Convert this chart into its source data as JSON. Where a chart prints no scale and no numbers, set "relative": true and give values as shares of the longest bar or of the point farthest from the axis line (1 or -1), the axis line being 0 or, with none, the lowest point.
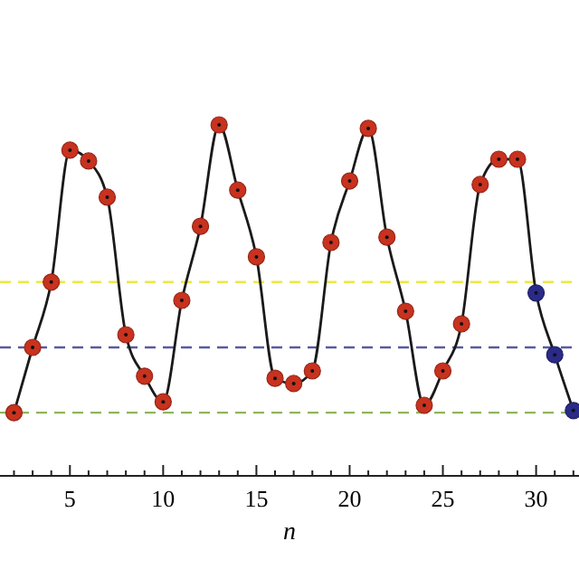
{
  "chart_data": {
    "type": "line",
    "relative": true,
    "xlabel": "n",
    "xlim": [
      1.25,
      32.3
    ],
    "xticks": [
      {
        "value": 2,
        "label": null
      },
      {
        "value": 3,
        "label": null
      },
      {
        "value": 4,
        "label": null
      },
      5,
      {
        "value": 6,
        "label": null
      },
      {
        "value": 7,
        "label": null
      },
      {
        "value": 8,
        "label": null
      },
      {
        "value": 9,
        "label": null
      },
      10,
      {
        "value": 11,
        "label": null
      },
      {
        "value": 12,
        "label": null
      },
      {
        "value": 13,
        "label": null
      },
      {
        "value": 14,
        "label": null
      },
      15,
      {
        "value": 16,
        "label": null
      },
      {
        "value": 17,
        "label": null
      },
      {
        "value": 18,
        "label": null
      },
      {
        "value": 19,
        "label": null
      },
      20,
      {
        "value": 21,
        "label": null
      },
      {
        "value": 22,
        "label": null
      },
      {
        "value": 23,
        "label": null
      },
      {
        "value": 24,
        "label": null
      },
      25,
      {
        "value": 26,
        "label": null
      },
      {
        "value": 27,
        "label": null
      },
      {
        "value": 28,
        "label": null
      },
      {
        "value": 29,
        "label": null
      },
      30,
      {
        "value": 31,
        "label": null
      },
      {
        "value": 32,
        "label": null
      }
    ],
    "series": [
      {
        "color": "#1a1a1a",
        "marker": "none",
        "x": [
          2,
          3,
          4,
          5,
          6,
          7,
          8,
          9,
          10,
          11,
          12,
          13,
          14,
          15,
          16,
          17,
          18,
          19,
          20,
          21,
          22,
          23,
          24,
          25,
          26,
          27,
          28,
          29,
          30,
          31,
          32
        ],
        "values": [
          0.18,
          0.366,
          0.552,
          0.928,
          0.897,
          0.794,
          0.402,
          0.284,
          0.211,
          0.5,
          0.711,
          1,
          0.814,
          0.624,
          0.278,
          0.263,
          0.299,
          0.665,
          0.84,
          0.99,
          0.68,
          0.469,
          0.201,
          0.299,
          0.433,
          0.83,
          0.902,
          0.902,
          0.521,
          0.345,
          0.186
        ]
      },
      {
        "type": "scatter",
        "color": "#c8321e",
        "marker": "circle",
        "x": [
          2,
          3,
          4,
          5,
          6,
          7,
          8,
          9,
          10,
          11,
          12,
          13,
          14,
          15,
          16,
          17,
          18,
          19,
          20,
          21,
          22,
          23,
          24,
          25,
          26,
          27,
          28,
          29
        ],
        "values": [
          0.18,
          0.366,
          0.552,
          0.928,
          0.897,
          0.794,
          0.402,
          0.284,
          0.211,
          0.5,
          0.711,
          1,
          0.814,
          0.624,
          0.278,
          0.263,
          0.299,
          0.665,
          0.84,
          0.99,
          0.68,
          0.469,
          0.201,
          0.299,
          0.433,
          0.83,
          0.902,
          0.902
        ]
      },
      {
        "type": "scatter",
        "color": "#2a2a88",
        "marker": "circle",
        "x": [
          30,
          31,
          32
        ],
        "values": [
          0.521,
          0.345,
          0.186
        ]
      }
    ],
    "ref_lines": [
      {
        "axis": "y",
        "value": 0.552,
        "color": "#ece84a",
        "line_style": "dashed"
      },
      {
        "axis": "y",
        "value": 0.366,
        "color": "#5a5aa0",
        "line_style": "dashed"
      },
      {
        "axis": "y",
        "value": 0.18,
        "color": "#8fb55a",
        "line_style": "dashed"
      }
    ]
  }
}
